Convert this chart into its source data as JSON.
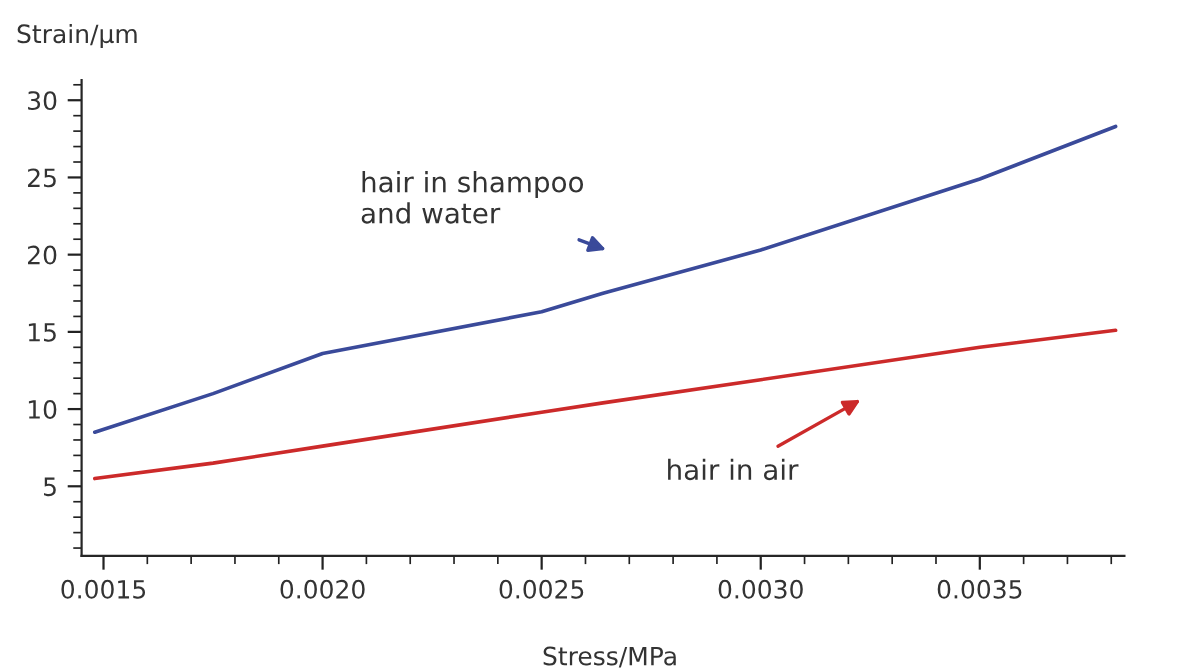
{
  "chart_data": {
    "type": "line",
    "xlabel": "Stress/MPa",
    "ylabel": "Strain/μm",
    "xlim": [
      0.00145,
      0.00383
    ],
    "ylim": [
      0.5,
      31.3
    ],
    "xticks": [
      {
        "value": 0.0015,
        "label": "0.0015"
      },
      {
        "value": 0.002,
        "label": "0.0020"
      },
      {
        "value": 0.0025,
        "label": "0.0025"
      },
      {
        "value": 0.003,
        "label": "0.0030"
      },
      {
        "value": 0.0035,
        "label": "0.0035"
      }
    ],
    "yticks": [
      5,
      10,
      15,
      20,
      25,
      30
    ],
    "grid": false,
    "legend": false,
    "marker": "none",
    "line_style": "solid",
    "series": [
      {
        "color": "#3a4a9a",
        "x": [
          0.00148,
          0.00175,
          0.002,
          0.0025,
          0.00264,
          0.003,
          0.0035,
          0.00381
        ],
        "values": [
          8.5,
          11.0,
          13.6,
          16.3,
          17.5,
          20.3,
          24.9,
          28.3
        ]
      },
      {
        "color": "#cc2a2a",
        "x": [
          0.00148,
          0.00175,
          0.002,
          0.0025,
          0.00264,
          0.003,
          0.0035,
          0.00381
        ],
        "values": [
          5.5,
          6.5,
          7.6,
          9.8,
          10.4,
          11.9,
          14.0,
          15.1
        ]
      }
    ],
    "annotations": [
      "hair in shampoo\nand water",
      "hair in air"
    ]
  }
}
